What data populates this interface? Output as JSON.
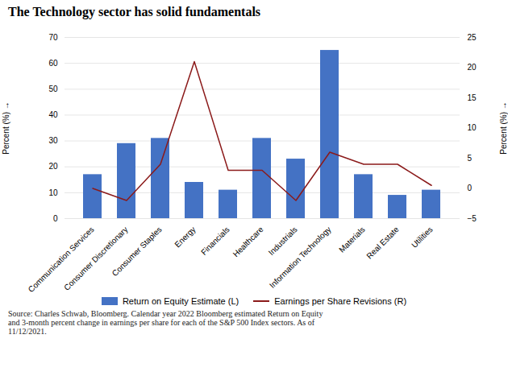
{
  "chart_data": {
    "type": "bar",
    "title": "The Technology sector has solid fundamentals",
    "categories": [
      "Communication Services",
      "Consumer Discretionary",
      "Consumer Staples",
      "Energy",
      "Financials",
      "Healthcare",
      "Industrials",
      "Information Technology",
      "Materials",
      "Real Estate",
      "Utilities"
    ],
    "series": [
      {
        "name": "Return on Equity Estimate (L)",
        "type": "bar",
        "color": "#4472C4",
        "values": [
          17,
          29,
          31,
          14,
          11,
          31,
          23,
          65,
          17,
          9,
          11
        ]
      },
      {
        "name": "Earnings per Share Revisions (R)",
        "type": "line",
        "color": "#8B1A1A",
        "axis": "y2",
        "values": [
          0.0,
          -2.0,
          4.0,
          21.0,
          3.0,
          3.0,
          -2.0,
          6.0,
          4.0,
          4.0,
          0.5
        ]
      }
    ],
    "ylabel": "Percent (%)",
    "y2label": "Percent (%)",
    "ylim": [
      0,
      70
    ],
    "yticks": [
      0,
      10,
      20,
      30,
      40,
      50,
      60,
      70
    ],
    "y2lim": [
      -5,
      25
    ],
    "y2ticks": [
      -5,
      0,
      5,
      10,
      15,
      20,
      25
    ],
    "grid": true,
    "legend": "bottom",
    "source": "Source: Charles Schwab, Bloomberg.  Calendar year 2022 Bloomberg estimated Return on Equity\nand 3-month percent change in earnings per share for each of the S&P 500 Index sectors. As of\n11/12/2021."
  }
}
